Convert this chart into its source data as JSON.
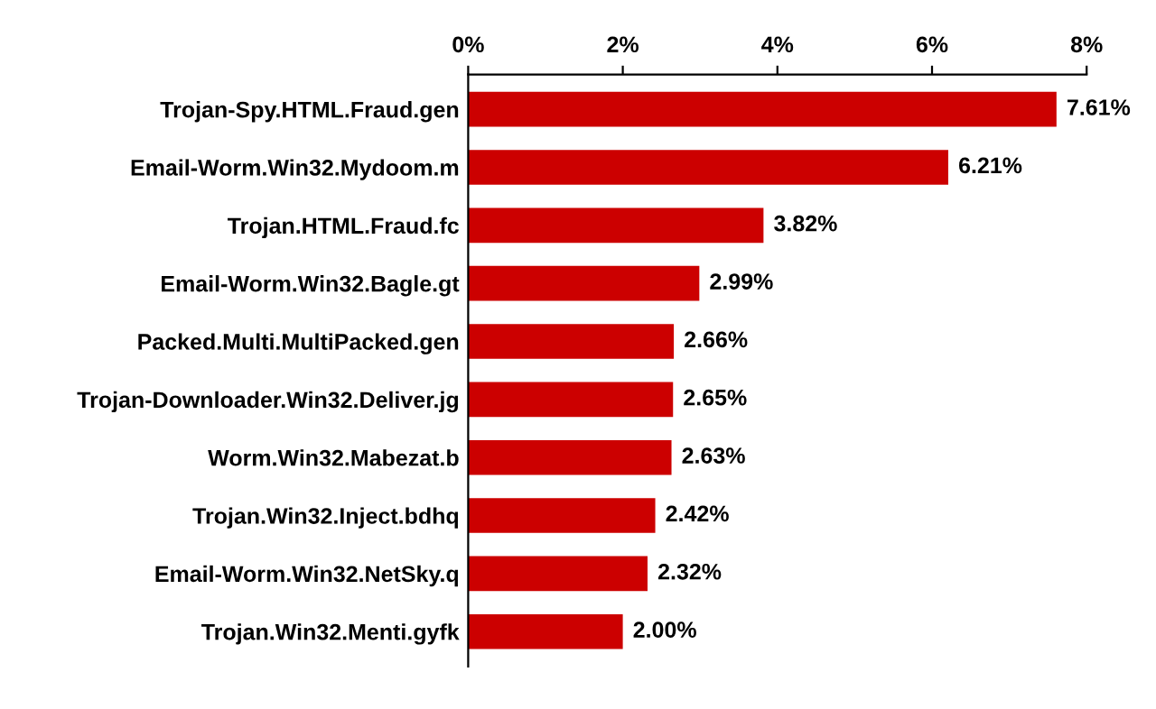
{
  "chart_data": {
    "type": "bar",
    "orientation": "horizontal",
    "categories": [
      "Trojan-Spy.HTML.Fraud.gen",
      "Email-Worm.Win32.Mydoom.m",
      "Trojan.HTML.Fraud.fc",
      "Email-Worm.Win32.Bagle.gt",
      "Packed.Multi.MultiPacked.gen",
      "Trojan-Downloader.Win32.Deliver.jg",
      "Worm.Win32.Mabezat.b",
      "Trojan.Win32.Inject.bdhq",
      "Email-Worm.Win32.NetSky.q",
      "Trojan.Win32.Menti.gyfk"
    ],
    "values": [
      7.61,
      6.21,
      3.82,
      2.99,
      2.66,
      2.65,
      2.63,
      2.42,
      2.32,
      2.0
    ],
    "value_labels": [
      "7.61%",
      "6.21%",
      "3.82%",
      "2.99%",
      "2.66%",
      "2.65%",
      "2.63%",
      "2.42%",
      "2.32%",
      "2.00%"
    ],
    "color": "#cc0000",
    "xlim": [
      0,
      8
    ],
    "xticks": [
      {
        "value": 0,
        "label": "0%"
      },
      {
        "value": 2,
        "label": "2%"
      },
      {
        "value": 4,
        "label": "4%"
      },
      {
        "value": 6,
        "label": "6%"
      },
      {
        "value": 8,
        "label": "8%"
      }
    ],
    "grid": false,
    "legend": false
  }
}
